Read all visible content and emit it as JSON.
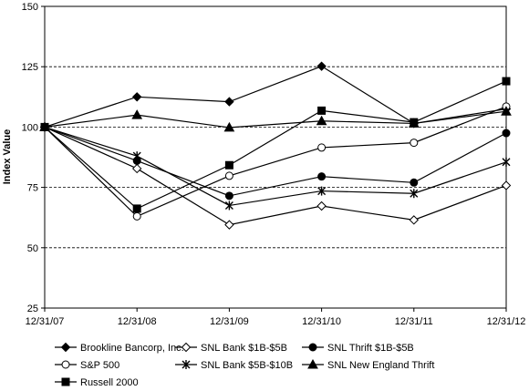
{
  "chart_data": {
    "type": "line",
    "title": "",
    "xlabel": "",
    "ylabel": "Index Value",
    "ylim": [
      25,
      150
    ],
    "yticks": [
      25,
      50,
      75,
      100,
      125,
      150
    ],
    "grid": "horizontal-dashed",
    "legend_position": "bottom",
    "categories": [
      "12/31/07",
      "12/31/08",
      "12/31/09",
      "12/31/10",
      "12/31/11",
      "12/31/12"
    ],
    "series": [
      {
        "name": "Brookline Bancorp, Inc.",
        "marker": "diamond-filled",
        "values": [
          100,
          112.5,
          110.5,
          125.2,
          101.5,
          107.5
        ]
      },
      {
        "name": "SNL Bank $1B-$5B",
        "marker": "diamond-open",
        "values": [
          100,
          82.8,
          59.5,
          67.3,
          61.5,
          75.8
        ]
      },
      {
        "name": "SNL Thrift $1B-$5B",
        "marker": "circle-filled",
        "values": [
          100,
          86.0,
          71.5,
          79.5,
          77.0,
          97.5
        ]
      },
      {
        "name": "S&P 500",
        "marker": "circle-open",
        "values": [
          100,
          63.0,
          79.8,
          91.5,
          93.5,
          108.5
        ]
      },
      {
        "name": "SNL Bank $5B-$10B",
        "marker": "star",
        "values": [
          100,
          88.0,
          67.5,
          73.5,
          72.5,
          85.5
        ]
      },
      {
        "name": "SNL New England Thrift",
        "marker": "triangle-filled",
        "values": [
          100,
          105.0,
          99.8,
          102.5,
          101.5,
          106.5
        ]
      },
      {
        "name": "Russell 2000",
        "marker": "square-filled",
        "values": [
          100,
          66.2,
          84.2,
          106.8,
          102.0,
          119.0
        ]
      }
    ]
  }
}
